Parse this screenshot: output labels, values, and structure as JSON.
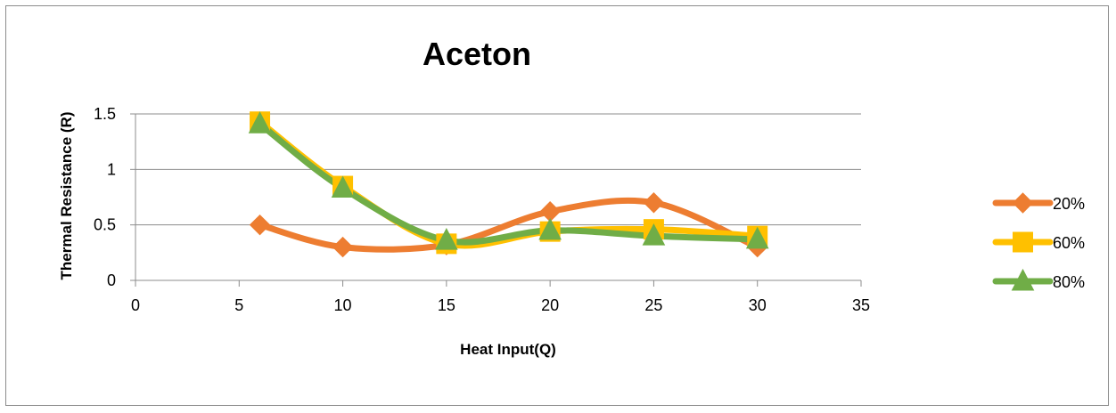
{
  "chart_data": {
    "type": "line",
    "title": "Aceton",
    "xlabel": "Heat Input(Q)",
    "ylabel": "Thermal Resistance (R)",
    "xlim": [
      0,
      35
    ],
    "ylim": [
      0,
      1.5
    ],
    "x_ticks": [
      "0",
      "5",
      "10",
      "15",
      "20",
      "25",
      "30",
      "35"
    ],
    "y_ticks": [
      "0",
      "0.5",
      "1",
      "1.5"
    ],
    "grid": "horizontal",
    "smooth": true,
    "legend_position": "right",
    "x": [
      6,
      10,
      15,
      20,
      25,
      30
    ],
    "series": [
      {
        "name": "20%",
        "values": [
          0.5,
          0.3,
          0.32,
          0.62,
          0.7,
          0.3
        ],
        "color": "#ED7D31",
        "marker": "diamond"
      },
      {
        "name": "60%",
        "values": [
          1.43,
          0.85,
          0.33,
          0.44,
          0.46,
          0.4
        ],
        "color": "#FFC000",
        "marker": "square"
      },
      {
        "name": "80%",
        "values": [
          1.41,
          0.83,
          0.36,
          0.45,
          0.4,
          0.37
        ],
        "color": "#70AD47",
        "marker": "triangle"
      }
    ]
  }
}
